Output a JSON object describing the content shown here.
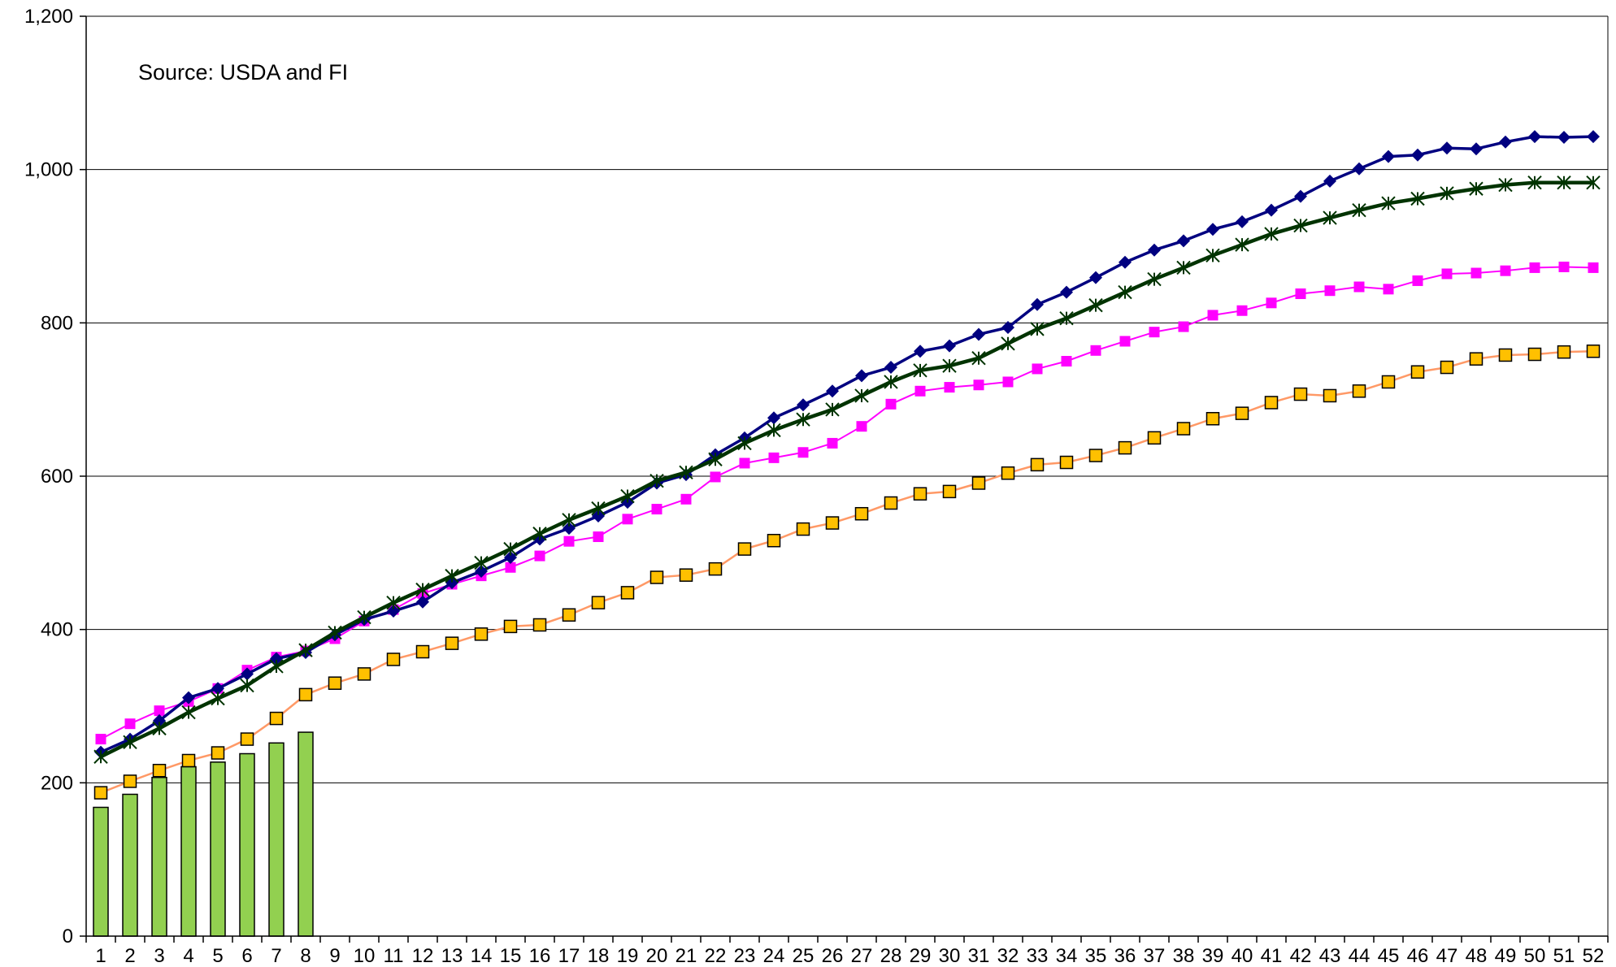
{
  "chart_data": {
    "type": "bar+line",
    "annotation": "Source: USDA and FI",
    "x_categories": [
      "1",
      "2",
      "3",
      "4",
      "5",
      "6",
      "7",
      "8",
      "9",
      "10",
      "11",
      "12",
      "13",
      "14",
      "15",
      "16",
      "17",
      "18",
      "19",
      "20",
      "21",
      "22",
      "23",
      "24",
      "25",
      "26",
      "27",
      "28",
      "29",
      "30",
      "31",
      "32",
      "33",
      "34",
      "35",
      "36",
      "37",
      "38",
      "39",
      "40",
      "41",
      "42",
      "43",
      "44",
      "45",
      "46",
      "47",
      "48",
      "49",
      "50",
      "51",
      "52"
    ],
    "y_ticks": [
      "0",
      "200",
      "400",
      "600",
      "800",
      "1,000",
      "1,200"
    ],
    "ylim": [
      0,
      1200
    ],
    "grid": true,
    "legend": "none",
    "bars": {
      "color": "#92d050",
      "values": [
        168,
        185,
        207,
        221,
        227,
        238,
        252,
        266
      ]
    },
    "series": [
      {
        "color": "#000080",
        "marker": "diamond",
        "values": [
          240,
          257,
          281,
          311,
          323,
          342,
          362,
          370,
          393,
          413,
          424,
          436,
          461,
          476,
          494,
          518,
          532,
          548,
          566,
          591,
          602,
          628,
          650,
          676,
          693,
          711,
          731,
          742,
          763,
          770,
          785,
          794,
          824,
          840,
          859,
          879,
          895,
          907,
          922,
          932,
          947,
          965,
          985,
          1001,
          1017,
          1019,
          1028,
          1027,
          1036,
          1043,
          1042,
          1043
        ]
      },
      {
        "color": "#ff00ff",
        "marker": "square",
        "values": [
          257,
          277,
          294,
          306,
          323,
          347,
          364,
          372,
          388,
          411,
          426,
          447,
          459,
          470,
          481,
          496,
          515,
          521,
          544,
          557,
          570,
          599,
          617,
          624,
          631,
          643,
          665,
          694,
          711,
          716,
          719,
          723,
          740,
          750,
          764,
          776,
          788,
          795,
          810,
          816,
          826,
          838,
          842,
          847,
          844,
          855,
          864,
          865,
          868,
          872,
          873,
          872
        ]
      },
      {
        "color": "#003300",
        "marker": "star",
        "values": [
          234,
          253,
          271,
          292,
          310,
          327,
          352,
          373,
          396,
          416,
          435,
          452,
          470,
          487,
          505,
          525,
          543,
          558,
          574,
          594,
          605,
          622,
          643,
          660,
          674,
          687,
          705,
          723,
          738,
          744,
          754,
          773,
          792,
          806,
          823,
          840,
          857,
          872,
          888,
          902,
          916,
          927,
          937,
          947,
          956,
          962,
          969,
          975,
          980,
          983,
          983,
          983
        ]
      },
      {
        "color": "#ffc000",
        "line_color": "#ff9966",
        "marker": "square-outlined",
        "values": [
          187,
          202,
          216,
          229,
          239,
          257,
          284,
          315,
          330,
          342,
          361,
          371,
          382,
          394,
          404,
          406,
          419,
          435,
          448,
          468,
          471,
          479,
          505,
          516,
          531,
          539,
          551,
          565,
          577,
          580,
          591,
          604,
          615,
          618,
          627,
          637,
          650,
          662,
          675,
          682,
          696,
          707,
          705,
          711,
          723,
          736,
          742,
          753,
          758,
          759,
          762,
          763
        ]
      }
    ]
  }
}
